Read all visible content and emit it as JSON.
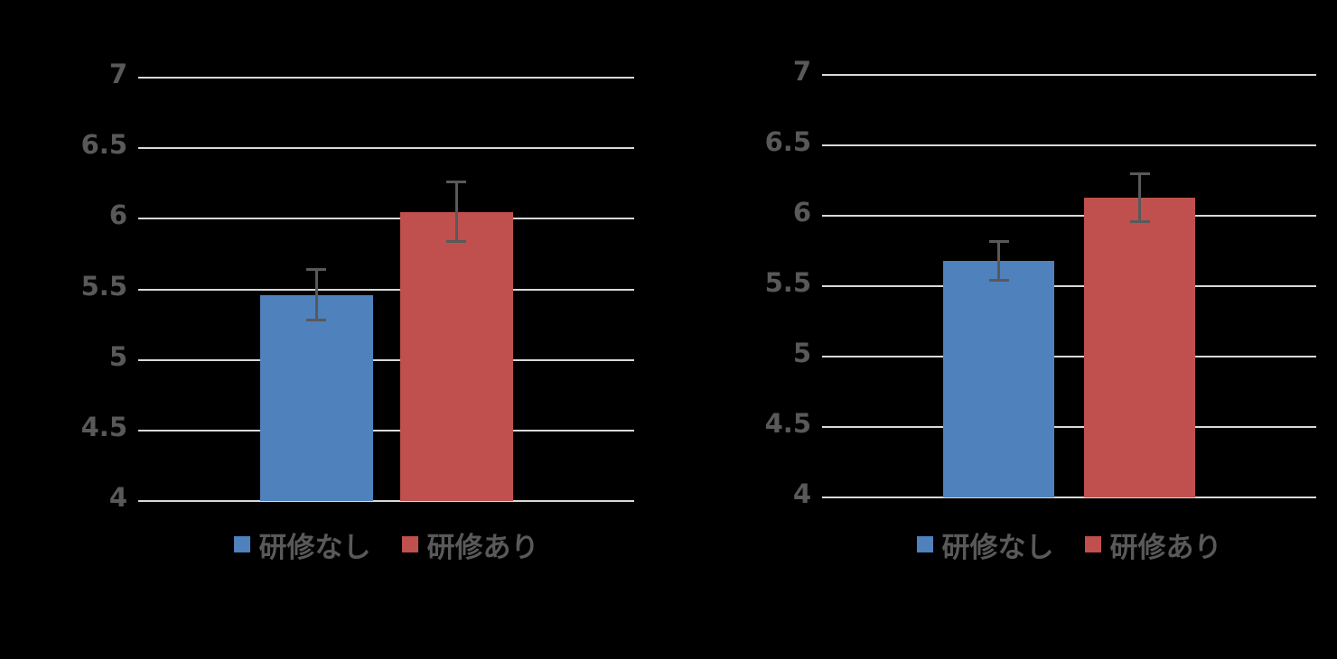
{
  "background_color": "#000000",
  "text_color": "#595959",
  "gridline_color": "#D9D9D9",
  "error_bar_color": "#595959",
  "chart_data": [
    {
      "type": "bar",
      "title": "",
      "xlabel": "",
      "ylabel": "",
      "categories": [
        ""
      ],
      "series": [
        {
          "name": "研修なし",
          "values": [
            5.46
          ],
          "error_values": [
            0.18
          ],
          "color": "#4F81BD"
        },
        {
          "name": "研修あり",
          "values": [
            6.05
          ],
          "error_values": [
            0.21
          ],
          "color": "#C0504D"
        }
      ],
      "ylim": [
        4,
        7
      ],
      "ytick_interval": 0.5,
      "ytick_labels": [
        "7",
        "6.5",
        "6",
        "5.5",
        "5",
        "4.5",
        "4"
      ],
      "ytick_values": [
        7,
        6.5,
        6,
        5.5,
        5,
        4.5,
        4
      ],
      "grid": true,
      "legend_position": "bottom",
      "legend": [
        "研修なし",
        "研修あり"
      ]
    },
    {
      "type": "bar",
      "title": "",
      "xlabel": "",
      "ylabel": "",
      "categories": [
        ""
      ],
      "series": [
        {
          "name": "研修なし",
          "values": [
            5.68
          ],
          "error_values": [
            0.14
          ],
          "color": "#4F81BD"
        },
        {
          "name": "研修あり",
          "values": [
            6.13
          ],
          "error_values": [
            0.17
          ],
          "color": "#C0504D"
        }
      ],
      "ylim": [
        4,
        7
      ],
      "ytick_interval": 0.5,
      "ytick_labels": [
        "7",
        "6.5",
        "6",
        "5.5",
        "5",
        "4.5",
        "4"
      ],
      "ytick_values": [
        7,
        6.5,
        6,
        5.5,
        5,
        4.5,
        4
      ],
      "grid": true,
      "legend_position": "bottom",
      "legend": [
        "研修なし",
        "研修あり"
      ]
    }
  ]
}
